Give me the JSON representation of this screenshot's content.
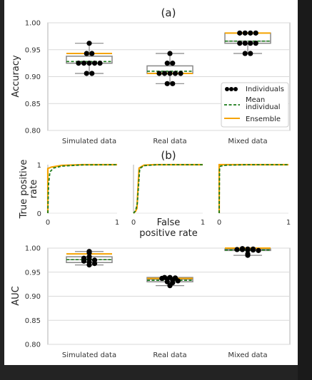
{
  "chart_data": [
    {
      "type": "box",
      "title": "(a)",
      "xlabel": "",
      "ylabel": "Accuracy",
      "ylim": [
        0.8,
        1.0
      ],
      "yticks": [
        "0.80",
        "0.85",
        "0.90",
        "0.95",
        "1.00"
      ],
      "categories": [
        "Simulated data",
        "Real data",
        "Mixed data"
      ],
      "series": [
        {
          "name": "Individuals",
          "values": [
            [
              0.962,
              0.943,
              0.943,
              0.925,
              0.925,
              0.925,
              0.925,
              0.925,
              0.906,
              0.906
            ],
            [
              0.943,
              0.925,
              0.925,
              0.906,
              0.906,
              0.906,
              0.906,
              0.906,
              0.887,
              0.887
            ],
            [
              0.981,
              0.981,
              0.981,
              0.981,
              0.962,
              0.962,
              0.962,
              0.962,
              0.943,
              0.943
            ]
          ]
        },
        {
          "name": "Mean individual",
          "values": [
            0.928,
            0.91,
            0.966
          ]
        },
        {
          "name": "Ensemble",
          "values": [
            0.943,
            0.906,
            0.981
          ]
        }
      ],
      "box_stats": [
        {
          "whisker_low": 0.906,
          "q1": 0.925,
          "median": 0.925,
          "q3": 0.938,
          "whisker_high": 0.962
        },
        {
          "whisker_low": 0.887,
          "q1": 0.906,
          "median": 0.906,
          "q3": 0.92,
          "whisker_high": 0.943
        },
        {
          "whisker_low": 0.943,
          "q1": 0.962,
          "median": 0.966,
          "q3": 0.981,
          "whisker_high": 0.981
        }
      ],
      "legend": {
        "position": "right",
        "entries": [
          "Individuals",
          "Mean individual",
          "Ensemble"
        ]
      }
    },
    {
      "type": "line",
      "title": "(b)",
      "xlabel": "False positive rate",
      "ylabel": "True positive rate",
      "xlim": [
        0,
        1
      ],
      "ylim": [
        0,
        1
      ],
      "xticks": [
        "0",
        "1"
      ],
      "yticks": [
        "0",
        "1"
      ],
      "panels": [
        {
          "category": "Simulated data",
          "ensemble": [
            [
              0,
              0
            ],
            [
              0,
              0.92
            ],
            [
              0.05,
              0.95
            ],
            [
              0.2,
              0.985
            ],
            [
              0.5,
              1
            ],
            [
              1,
              1
            ]
          ],
          "mean_individual": [
            [
              0,
              0
            ],
            [
              0.01,
              0.6
            ],
            [
              0.03,
              0.85
            ],
            [
              0.08,
              0.93
            ],
            [
              0.2,
              0.97
            ],
            [
              0.5,
              0.995
            ],
            [
              1,
              1
            ]
          ]
        },
        {
          "category": "Real data",
          "ensemble": [
            [
              0,
              0
            ],
            [
              0.03,
              0.04
            ],
            [
              0.05,
              0.1
            ],
            [
              0.08,
              0.93
            ],
            [
              0.15,
              0.99
            ],
            [
              0.3,
              1
            ],
            [
              1,
              1
            ]
          ],
          "mean_individual": [
            [
              0,
              0
            ],
            [
              0.03,
              0.05
            ],
            [
              0.055,
              0.2
            ],
            [
              0.09,
              0.92
            ],
            [
              0.15,
              0.98
            ],
            [
              0.35,
              1
            ],
            [
              1,
              1
            ]
          ]
        },
        {
          "category": "Mixed data",
          "ensemble": [
            [
              0,
              0
            ],
            [
              0,
              1
            ],
            [
              1,
              1
            ]
          ],
          "mean_individual": [
            [
              0,
              0
            ],
            [
              0.005,
              0.9
            ],
            [
              0.02,
              0.97
            ],
            [
              0.1,
              0.99
            ],
            [
              0.4,
              1
            ],
            [
              1,
              1
            ]
          ]
        }
      ]
    },
    {
      "type": "box",
      "title": "",
      "xlabel": "",
      "ylabel": "AUC",
      "ylim": [
        0.8,
        1.0
      ],
      "yticks": [
        "0.80",
        "0.85",
        "0.90",
        "0.95",
        "1.00"
      ],
      "categories": [
        "Simulated data",
        "Real data",
        "Mixed data"
      ],
      "series": [
        {
          "name": "Individuals",
          "values": [
            [
              0.993,
              0.99,
              0.982,
              0.979,
              0.977,
              0.975,
              0.973,
              0.971,
              0.968,
              0.965
            ],
            [
              0.939,
              0.939,
              0.938,
              0.937,
              0.936,
              0.934,
              0.932,
              0.93,
              0.928,
              0.922
            ],
            [
              0.999,
              0.998,
              0.998,
              0.997,
              0.997,
              0.996,
              0.996,
              0.995,
              0.988,
              0.985
            ]
          ]
        },
        {
          "name": "Mean individual",
          "values": [
            0.976,
            0.933,
            0.996
          ]
        },
        {
          "name": "Ensemble",
          "values": [
            0.988,
            0.937,
            1.0
          ]
        }
      ],
      "box_stats": [
        {
          "whisker_low": 0.965,
          "q1": 0.97,
          "median": 0.976,
          "q3": 0.982,
          "whisker_high": 0.993
        },
        {
          "whisker_low": 0.922,
          "q1": 0.93,
          "median": 0.935,
          "q3": 0.939,
          "whisker_high": 0.939
        },
        {
          "whisker_low": 0.985,
          "q1": 0.995,
          "median": 0.997,
          "q3": 0.998,
          "whisker_high": 0.999
        }
      ]
    }
  ],
  "colors": {
    "individuals": "#000000",
    "mean_individual": "#1a7a1a",
    "ensemble": "#f5a300",
    "box": "#888888",
    "grid": "#d9d9d9",
    "axis": "#b0b0b0"
  }
}
